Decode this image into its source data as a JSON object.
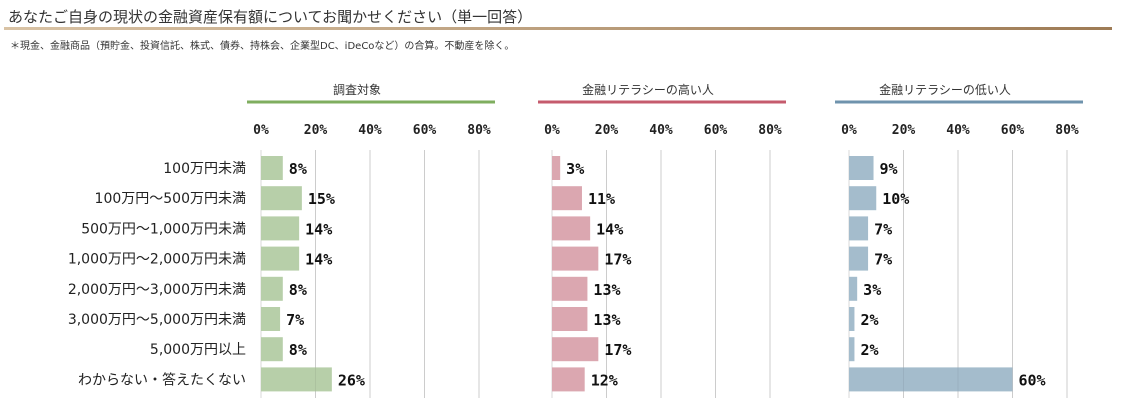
{
  "question": "あなたご自身の現状の金融資産保有額についてお聞かせください（単一回答）",
  "note": "＊現金、金融商品（預貯金、投資信託、株式、債券、持株会、企業型DC、iDeCoなど）の合算。不動産を除く。",
  "chart_data": {
    "type": "bar",
    "orientation": "horizontal",
    "categories": [
      "100万円未満",
      "100万円～500万円未満",
      "500万円～1,000万円未満",
      "1,000万円～2,000万円未満",
      "2,000万円～3,000万円未満",
      "3,000万円～5,000万円未満",
      "5,000万円以上",
      "わからない・答えたくない"
    ],
    "xlim": [
      0,
      80
    ],
    "ticks": [
      "0%",
      "20%",
      "40%",
      "60%",
      "80%"
    ],
    "grid": true,
    "series": [
      {
        "name": "調査対象",
        "color": "#b7cfa9",
        "accent": "#7fae5f",
        "values": [
          8,
          15,
          14,
          14,
          8,
          7,
          8,
          26
        ]
      },
      {
        "name": "金融リテラシーの高い人",
        "color": "#dba7b0",
        "accent": "#c55b6d",
        "values": [
          3,
          11,
          14,
          17,
          13,
          13,
          17,
          12
        ]
      },
      {
        "name": "金融リテラシーの低い人",
        "color": "#a4bccc",
        "accent": "#6f93ad",
        "values": [
          9,
          10,
          7,
          7,
          3,
          2,
          2,
          60
        ]
      }
    ]
  }
}
